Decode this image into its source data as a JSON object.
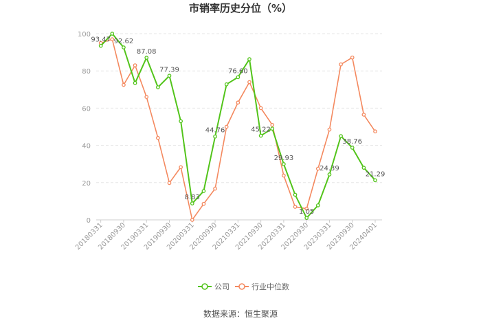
{
  "chart_data": {
    "type": "line",
    "title": "市销率历史分位（%）",
    "xlabel": "",
    "ylabel": "",
    "ylim": [
      0,
      100
    ],
    "yticks": [
      0,
      20,
      40,
      60,
      80,
      100
    ],
    "grid": true,
    "legend_position": "bottom",
    "x": [
      "20180331",
      "20180630",
      "20180930",
      "20181231",
      "20190331",
      "20190630",
      "20190930",
      "20191231",
      "20200331",
      "20200630",
      "20200930",
      "20201231",
      "20210331",
      "20210630",
      "20210930",
      "20211231",
      "20220331",
      "20220630",
      "20220930",
      "20221231",
      "20230331",
      "20230630",
      "20230930",
      "20231231",
      "20240401"
    ],
    "xticks": [
      "20180331",
      "20180930",
      "20190331",
      "20190930",
      "20200331",
      "20200930",
      "20210331",
      "20210930",
      "20220331",
      "20220930",
      "20230331",
      "20230930",
      "20240401"
    ],
    "series": [
      {
        "name": "公司",
        "color": "#52c41a",
        "values": [
          93.47,
          100,
          92.62,
          73.5,
          87.08,
          71.2,
          77.39,
          53,
          8.83,
          15.5,
          44.76,
          72.8,
          76.6,
          86.3,
          45.22,
          49,
          29.93,
          13.5,
          1.05,
          7.8,
          24.39,
          45,
          38.76,
          28,
          21.29
        ],
        "labeled_indices": [
          0,
          2,
          4,
          6,
          8,
          10,
          12,
          14,
          16,
          18,
          20,
          22,
          24
        ]
      },
      {
        "name": "行业中位数",
        "color": "#f4895f",
        "values": [
          95,
          97,
          72.5,
          83,
          66,
          44,
          19.8,
          28.3,
          0,
          8.6,
          16.8,
          50,
          63,
          74,
          60,
          51,
          23.8,
          7,
          6,
          27.5,
          48.5,
          83.5,
          87.2,
          56.5,
          47.5
        ],
        "labeled_indices": []
      }
    ]
  },
  "source": "数据来源：恒生聚源"
}
